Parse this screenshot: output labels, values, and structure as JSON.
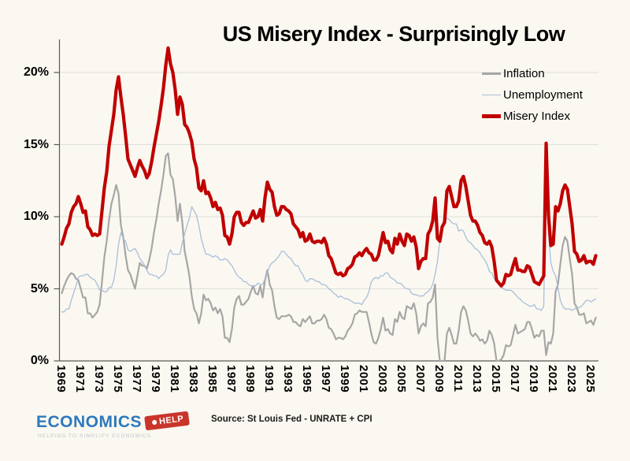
{
  "page": {
    "background": "#FAF8F0"
  },
  "logo": {
    "word": "ECONOMICS",
    "tag": "HELP",
    "tagline": "HELPING TO SIMPLIFY ECONOMICS",
    "word_color": "#2E79BE",
    "tag_color": "#C9352B",
    "tagline_color": "#BFC5CC"
  },
  "chart_data": {
    "type": "line",
    "title": "US Misery Index - Surprisingly Low",
    "source": "Source: St Louis Fed - UNRATE + CPI",
    "xlabel": "",
    "ylabel": "",
    "grid": "horizontal",
    "legend_position": "top-right",
    "background_color": "#FAF8F0",
    "grid_color": "#DEDEDD",
    "axis_color": "#595959",
    "x_start_year": 1969,
    "x_points_per_year": 4,
    "x_end": "mid-2025",
    "x_tick_years": [
      1969,
      1971,
      1973,
      1975,
      1977,
      1979,
      1981,
      1983,
      1985,
      1987,
      1989,
      1991,
      1993,
      1995,
      1997,
      1999,
      2001,
      2003,
      2005,
      2007,
      2009,
      2011,
      2013,
      2015,
      2017,
      2019,
      2021,
      2023,
      2025
    ],
    "y_ticks_pct": [
      0,
      5,
      10,
      15,
      20
    ],
    "y_tick_labels": [
      "0%",
      "5%",
      "10%",
      "15%",
      "20%"
    ],
    "ylim": [
      0,
      23
    ],
    "series": [
      {
        "name": "Inflation",
        "color": "#A6A6A6",
        "width": 2.2,
        "values": [
          4.7,
          5.2,
          5.6,
          5.9,
          6.1,
          6.0,
          5.7,
          5.6,
          5.0,
          4.4,
          4.4,
          3.3,
          3.3,
          3.0,
          3.2,
          3.4,
          3.9,
          5.5,
          7.2,
          8.3,
          9.8,
          10.9,
          11.5,
          12.2,
          11.6,
          9.4,
          8.6,
          7.3,
          6.3,
          6.0,
          5.5,
          5.0,
          5.9,
          6.8,
          6.6,
          6.6,
          6.4,
          7.0,
          7.8,
          8.9,
          9.8,
          10.9,
          11.8,
          12.9,
          14.2,
          14.4,
          12.9,
          12.6,
          11.4,
          9.7,
          10.9,
          9.6,
          7.6,
          6.8,
          5.9,
          4.5,
          3.6,
          3.3,
          2.6,
          3.3,
          4.6,
          4.2,
          4.3,
          4.0,
          3.5,
          3.7,
          3.3,
          3.6,
          3.1,
          1.6,
          1.6,
          1.3,
          2.2,
          3.7,
          4.3,
          4.5,
          3.9,
          3.9,
          4.1,
          4.3,
          4.8,
          5.2,
          4.7,
          4.6,
          5.2,
          4.4,
          5.6,
          6.3,
          5.3,
          4.9,
          3.8,
          3.0,
          2.9,
          3.1,
          3.1,
          3.1,
          3.2,
          3.1,
          2.7,
          2.7,
          2.5,
          2.4,
          2.9,
          2.7,
          2.9,
          3.1,
          2.6,
          2.6,
          2.8,
          2.8,
          2.9,
          3.2,
          2.9,
          2.3,
          2.2,
          1.9,
          1.5,
          1.6,
          1.6,
          1.5,
          1.7,
          2.1,
          2.3,
          2.6,
          3.2,
          3.3,
          3.5,
          3.4,
          3.4,
          3.4,
          2.7,
          1.9,
          1.3,
          1.2,
          1.6,
          2.2,
          3.0,
          2.1,
          2.2,
          1.9,
          1.8,
          2.9,
          2.7,
          3.4,
          3.0,
          2.9,
          3.8,
          3.7,
          3.6,
          4.0,
          3.3,
          1.9,
          2.4,
          2.6,
          2.4,
          4.0,
          4.1,
          4.4,
          5.3,
          1.6,
          0.0,
          0.0,
          0.0,
          1.9,
          2.3,
          1.8,
          1.2,
          1.2,
          2.1,
          3.4,
          3.8,
          3.5,
          2.8,
          1.9,
          1.7,
          1.9,
          1.7,
          1.4,
          1.5,
          1.2,
          1.4,
          2.1,
          1.8,
          1.2,
          0.0,
          0.0,
          0.1,
          0.4,
          1.1,
          1.0,
          1.1,
          1.8,
          2.5,
          1.9,
          2.0,
          2.1,
          2.2,
          2.7,
          2.7,
          2.2,
          1.6,
          1.8,
          1.7,
          2.1,
          2.1,
          0.4,
          1.3,
          1.2,
          1.9,
          4.8,
          5.3,
          6.7,
          8.0,
          8.6,
          8.3,
          7.1,
          6.0,
          4.0,
          3.7,
          3.2,
          3.2,
          3.3,
          2.6,
          2.7,
          2.8,
          2.5,
          3.0
        ]
      },
      {
        "name": "Unemployment",
        "color": "#A9BFDB",
        "width": 1.3,
        "values": [
          3.4,
          3.4,
          3.6,
          3.6,
          4.2,
          4.7,
          5.2,
          5.8,
          5.9,
          5.9,
          6.0,
          6.0,
          5.8,
          5.7,
          5.6,
          5.3,
          4.9,
          4.9,
          4.8,
          4.8,
          5.1,
          5.1,
          5.6,
          6.6,
          8.1,
          8.9,
          8.5,
          8.3,
          7.7,
          7.6,
          7.7,
          7.8,
          7.5,
          7.1,
          6.9,
          6.6,
          6.3,
          6.0,
          6.0,
          5.9,
          5.9,
          5.7,
          5.9,
          6.0,
          6.3,
          7.3,
          7.7,
          7.4,
          7.4,
          7.4,
          7.4,
          8.2,
          8.8,
          9.4,
          9.9,
          10.7,
          10.4,
          10.1,
          9.4,
          8.5,
          7.9,
          7.4,
          7.4,
          7.3,
          7.2,
          7.3,
          7.2,
          7.0,
          7.0,
          7.1,
          7.0,
          6.8,
          6.6,
          6.3,
          6.0,
          5.8,
          5.7,
          5.5,
          5.5,
          5.3,
          5.2,
          5.2,
          5.2,
          5.4,
          5.3,
          5.3,
          5.7,
          6.1,
          6.6,
          6.8,
          6.9,
          7.1,
          7.3,
          7.6,
          7.6,
          7.4,
          7.2,
          7.1,
          6.8,
          6.6,
          6.6,
          6.2,
          6.0,
          5.6,
          5.5,
          5.7,
          5.7,
          5.6,
          5.5,
          5.5,
          5.3,
          5.3,
          5.2,
          5.0,
          4.9,
          4.7,
          4.6,
          4.4,
          4.5,
          4.4,
          4.3,
          4.3,
          4.2,
          4.1,
          4.0,
          4.0,
          4.0,
          3.9,
          4.2,
          4.4,
          4.8,
          5.5,
          5.7,
          5.8,
          5.7,
          5.9,
          5.9,
          6.1,
          6.1,
          5.8,
          5.7,
          5.6,
          5.4,
          5.4,
          5.3,
          5.1,
          5.0,
          5.0,
          4.7,
          4.6,
          4.6,
          4.5,
          4.5,
          4.5,
          4.7,
          4.8,
          5.0,
          5.3,
          6.0,
          6.9,
          8.3,
          9.3,
          9.6,
          9.9,
          9.8,
          9.6,
          9.5,
          9.5,
          9.0,
          9.1,
          9.0,
          8.6,
          8.3,
          8.2,
          8.0,
          7.8,
          7.7,
          7.5,
          7.2,
          7.0,
          6.7,
          6.2,
          6.1,
          5.7,
          5.6,
          5.4,
          5.1,
          5.0,
          4.9,
          4.9,
          4.9,
          4.8,
          4.6,
          4.4,
          4.3,
          4.1,
          4.0,
          3.9,
          3.8,
          3.8,
          3.9,
          3.6,
          3.6,
          3.5,
          3.8,
          14.7,
          8.8,
          6.8,
          6.2,
          5.9,
          5.1,
          4.2,
          3.8,
          3.6,
          3.6,
          3.6,
          3.5,
          3.6,
          3.7,
          3.7,
          3.8,
          4.0,
          4.2,
          4.2,
          4.1,
          4.2,
          4.3
        ]
      },
      {
        "name": "Misery Index",
        "color": "#C00000",
        "width": 4.2,
        "values": [
          8.1,
          8.6,
          9.2,
          9.5,
          10.3,
          10.7,
          10.9,
          11.4,
          10.9,
          10.3,
          10.4,
          9.3,
          9.1,
          8.7,
          8.8,
          8.7,
          8.8,
          10.4,
          12.0,
          13.1,
          14.9,
          16.0,
          17.1,
          18.8,
          19.7,
          18.3,
          17.1,
          15.6,
          14.0,
          13.6,
          13.2,
          12.8,
          13.4,
          13.9,
          13.5,
          13.2,
          12.7,
          13.0,
          13.8,
          14.8,
          15.7,
          16.6,
          17.7,
          18.9,
          20.5,
          21.7,
          20.6,
          20.0,
          18.8,
          17.1,
          18.3,
          17.8,
          16.4,
          16.2,
          15.8,
          15.2,
          14.0,
          13.4,
          12.0,
          11.8,
          12.5,
          11.6,
          11.7,
          11.3,
          10.7,
          11.0,
          10.5,
          10.6,
          10.1,
          8.7,
          8.6,
          8.1,
          8.8,
          10.0,
          10.3,
          10.3,
          9.6,
          9.4,
          9.6,
          9.6,
          10.0,
          10.4,
          9.9,
          10.0,
          10.5,
          9.7,
          11.3,
          12.4,
          11.9,
          11.7,
          10.7,
          10.1,
          10.2,
          10.7,
          10.7,
          10.5,
          10.4,
          10.2,
          9.5,
          9.3,
          9.1,
          8.6,
          8.9,
          8.3,
          8.4,
          8.8,
          8.3,
          8.2,
          8.3,
          8.3,
          8.2,
          8.5,
          8.1,
          7.3,
          7.1,
          6.6,
          6.1,
          6.0,
          6.1,
          5.9,
          6.0,
          6.4,
          6.5,
          6.7,
          7.2,
          7.3,
          7.5,
          7.3,
          7.6,
          7.8,
          7.5,
          7.4,
          7.0,
          7.0,
          7.3,
          8.1,
          8.9,
          8.2,
          8.3,
          7.7,
          7.5,
          8.5,
          8.1,
          8.8,
          8.3,
          8.0,
          8.8,
          8.7,
          8.3,
          8.6,
          7.9,
          6.4,
          6.9,
          7.1,
          7.1,
          8.8,
          9.1,
          9.7,
          11.3,
          8.5,
          8.3,
          9.3,
          9.6,
          11.8,
          12.1,
          11.4,
          10.7,
          10.7,
          11.1,
          12.5,
          12.8,
          12.1,
          11.1,
          10.1,
          9.7,
          9.7,
          9.4,
          8.9,
          8.7,
          8.2,
          8.1,
          8.3,
          7.9,
          6.9,
          5.6,
          5.4,
          5.2,
          5.4,
          6.0,
          5.9,
          6.0,
          6.6,
          7.1,
          6.3,
          6.3,
          6.2,
          6.2,
          6.6,
          6.5,
          6.0,
          5.5,
          5.4,
          5.3,
          5.6,
          5.9,
          15.1,
          10.1,
          8.0,
          8.1,
          10.7,
          10.4,
          10.9,
          11.8,
          12.2,
          11.9,
          10.7,
          9.5,
          7.6,
          7.4,
          6.9,
          7.0,
          7.3,
          6.8,
          6.9,
          6.9,
          6.7,
          7.3
        ]
      }
    ]
  }
}
